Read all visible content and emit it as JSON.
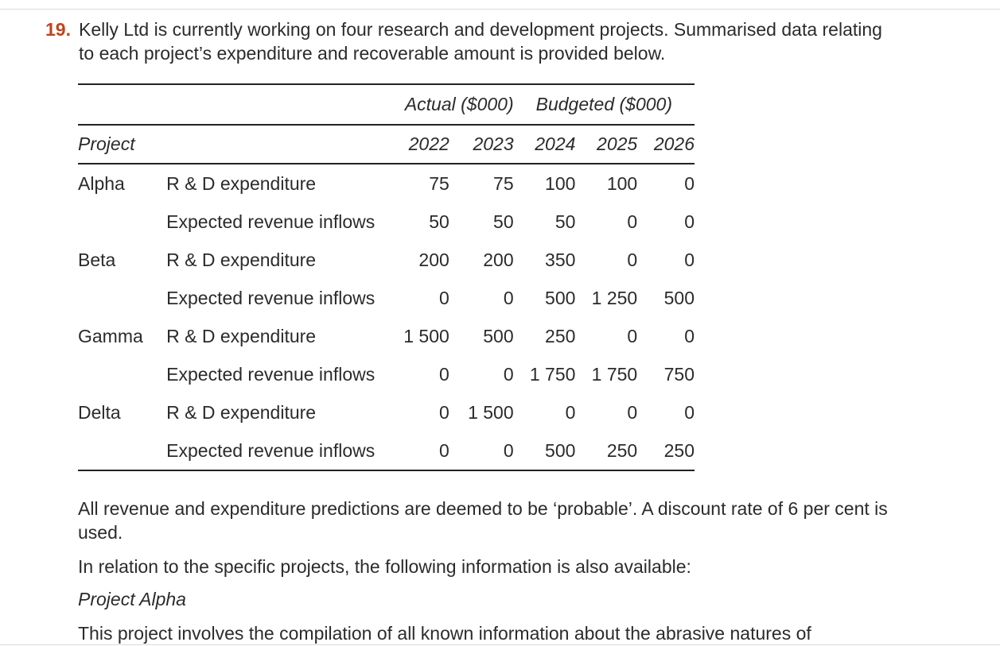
{
  "question": {
    "number": "19.",
    "intro": "Kelly Ltd is currently working on four research and development projects. Summarised data relating to each project’s expenditure and recoverable amount is provided below."
  },
  "table": {
    "group_actual": "Actual ($000)",
    "group_budgeted": "Budgeted ($000)",
    "project_header": "Project",
    "years": [
      "2022",
      "2023",
      "2024",
      "2025",
      "2026"
    ],
    "rows": [
      {
        "project": "Alpha",
        "label": "R & D expenditure",
        "values": [
          "75",
          "75",
          "100",
          "100",
          "0"
        ]
      },
      {
        "project": "",
        "label": "Expected revenue inflows",
        "values": [
          "50",
          "50",
          "50",
          "0",
          "0"
        ]
      },
      {
        "project": "Beta",
        "label": "R & D expenditure",
        "values": [
          "200",
          "200",
          "350",
          "0",
          "0"
        ]
      },
      {
        "project": "",
        "label": "Expected revenue inflows",
        "values": [
          "0",
          "0",
          "500",
          "1 250",
          "500"
        ]
      },
      {
        "project": "Gamma",
        "label": "R & D expenditure",
        "values": [
          "1 500",
          "500",
          "250",
          "0",
          "0"
        ]
      },
      {
        "project": "",
        "label": "Expected revenue inflows",
        "values": [
          "0",
          "0",
          "1 750",
          "1 750",
          "750"
        ]
      },
      {
        "project": "Delta",
        "label": "R & D expenditure",
        "values": [
          "0",
          "1 500",
          "0",
          "0",
          "0"
        ]
      },
      {
        "project": "",
        "label": "Expected revenue inflows",
        "values": [
          "0",
          "0",
          "500",
          "250",
          "250"
        ]
      }
    ]
  },
  "paragraphs": {
    "p1": "All revenue and expenditure predictions are deemed to be ‘probable’. A discount rate of 6 per cent is used.",
    "p2": "In relation to the specific projects, the following information is also available:",
    "p3": "Project Alpha",
    "p4": "This project involves the compilation of all known information about the abrasive natures of"
  },
  "colors": {
    "question_number": "#c0451b",
    "text": "#2b2b2b"
  }
}
